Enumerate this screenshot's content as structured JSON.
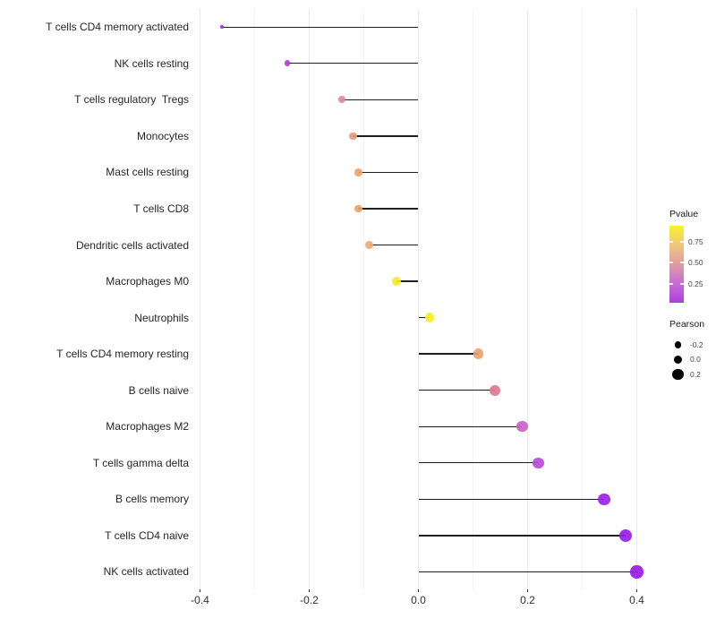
{
  "figure": {
    "background": "#ffffff"
  },
  "chart_data": {
    "type": "lollipop",
    "orientation": "horizontal",
    "title": "",
    "xlabel": "",
    "ylabel": "",
    "grid": "vertical-major-and-minor",
    "legend_position": "right",
    "xlim": [
      -0.455,
      0.437
    ],
    "categories": [
      "T cells CD4 memory activated",
      "NK cells resting",
      "T cells regulatory  Tregs",
      "Monocytes",
      "Mast cells resting",
      "T cells CD8",
      "Dendritic cells activated",
      "Macrophages M0",
      "Neutrophils",
      "T cells CD4 memory resting",
      "B cells naive",
      "Macrophages M2",
      "T cells gamma delta",
      "B cells memory",
      "T cells CD4 naive",
      "NK cells activated"
    ],
    "series": [
      {
        "name": "Pearson",
        "values": [
          -0.36,
          -0.24,
          -0.14,
          -0.12,
          -0.11,
          -0.11,
          -0.09,
          -0.04,
          0.02,
          0.11,
          0.14,
          0.19,
          0.22,
          0.34,
          0.38,
          0.4
        ]
      }
    ],
    "point_colors": [
      "#9b35cf",
      "#b03ed6",
      "#db8a90",
      "#e89a78",
      "#eca26e",
      "#eca36e",
      "#ecaa72",
      "#f5e92e",
      "#f8ee20",
      "#eda26e",
      "#dd7a90",
      "#cb5ec4",
      "#bb4bd9",
      "#9c23e4",
      "#9a1ee6",
      "#991be6"
    ],
    "stem_color": "#1f1f1f",
    "x_ticks": [
      {
        "label": "-0.4",
        "value": -0.4
      },
      {
        "label": "-0.2",
        "value": -0.2
      },
      {
        "label": "0.0",
        "value": 0.0
      },
      {
        "label": "0.2",
        "value": 0.2
      },
      {
        "label": "0.4",
        "value": 0.4
      }
    ],
    "x_minor_ticks": [
      -0.3,
      -0.1,
      0.1,
      0.3
    ],
    "grid_major_color": "#e8e8e8",
    "grid_minor_color": "#f4f4f4"
  },
  "legend": {
    "pvalue": {
      "title": "Pvalue",
      "gradient_stops_top_to_bottom": [
        "#f8f22b",
        "#f0c77f",
        "#dd9da2",
        "#c76cd4",
        "#ab3fe0"
      ],
      "ticks": [
        {
          "label": "0.75",
          "frac_from_top": 0.21
        },
        {
          "label": "0.50",
          "frac_from_top": 0.48
        },
        {
          "label": "0.25",
          "frac_from_top": 0.755
        }
      ]
    },
    "pearson": {
      "title": "Pearson",
      "items": [
        {
          "label": "-0.2",
          "radius": 3.6
        },
        {
          "label": "0.0",
          "radius": 4.9
        },
        {
          "label": "0.2",
          "radius": 6.1
        }
      ]
    }
  }
}
